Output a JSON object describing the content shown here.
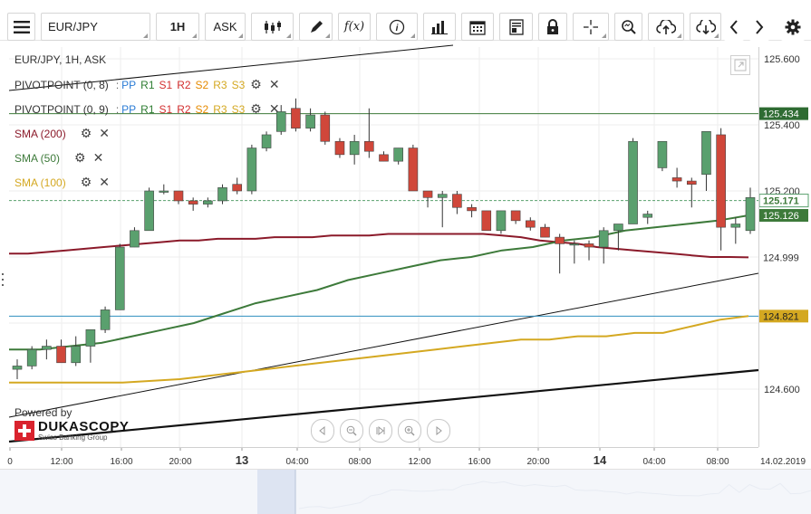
{
  "toolbar": {
    "symbol": "EUR/JPY",
    "timeframe": "1H",
    "price_side": "ASK",
    "function_label": "f(x)",
    "info_label": "i"
  },
  "header": {
    "instrument_label": "EUR/JPY, 1H, ASK"
  },
  "legend": {
    "pivot1": {
      "name": "PIVOTPOINT (0, 8)",
      "sep": ":",
      "pp": "PP",
      "r1": "R1",
      "s1": "S1",
      "r2": "R2",
      "s2": "S2",
      "r3": "R3",
      "s3": "S3"
    },
    "pivot2": {
      "name": "PIVOTPOINT (0, 9)",
      "sep": ":",
      "pp": "PP",
      "r1": "R1",
      "s1": "S1",
      "r2": "R2",
      "s2": "S2",
      "r3": "R3",
      "s3": "S3"
    },
    "sma200": "SMA (200)",
    "sma50": "SMA (50)",
    "sma100": "SMA (100)"
  },
  "colors": {
    "bull": "#5aa06e",
    "bear": "#d0473a",
    "sma200": "#8b1a2a",
    "sma50": "#3d7a3a",
    "sma100": "#d4a821",
    "pp": "#2a7bd5",
    "r1": "#2e7d32",
    "s1": "#d32f2f",
    "r2": "#d32f2f",
    "s2": "#e68a00",
    "r3": "#d4a821",
    "s3": "#d4a821",
    "pivot_line": "#3d7a3a",
    "cyan_line": "#2f8fbf"
  },
  "branding": {
    "powered_by": "Powered by",
    "brand": "DUKASCOPY",
    "tagline": "Swiss Banking Group"
  },
  "chart_data": {
    "type": "candlestick",
    "title": "EUR/JPY, 1H, ASK",
    "ylim": [
      124.52,
      125.66
    ],
    "y_ticks": [
      "125.600",
      "125.400",
      "125.200",
      "124.600"
    ],
    "x_ticks": [
      "0",
      "12:00",
      "16:00",
      "20:00",
      "13",
      "04:00",
      "08:00",
      "12:00",
      "16:00",
      "20:00",
      "14",
      "04:00",
      "08:00"
    ],
    "date_label": "14.02.2019",
    "price_tags": [
      {
        "label": "125.434",
        "value": 125.434,
        "style": "pivot"
      },
      {
        "label": "125.171",
        "value": 125.171,
        "style": "current"
      },
      {
        "label": "125.126",
        "value": 125.126,
        "style": "sma50"
      },
      {
        "label": "124.999",
        "value": 124.999,
        "style": "sma200"
      },
      {
        "label": "124.821",
        "value": 124.821,
        "style": "sma100"
      }
    ],
    "candles": [
      {
        "o": 124.66,
        "h": 124.69,
        "l": 124.63,
        "c": 124.67
      },
      {
        "o": 124.67,
        "h": 124.73,
        "l": 124.66,
        "c": 124.72
      },
      {
        "o": 124.72,
        "h": 124.75,
        "l": 124.69,
        "c": 124.73
      },
      {
        "o": 124.73,
        "h": 124.75,
        "l": 124.68,
        "c": 124.68
      },
      {
        "o": 124.68,
        "h": 124.76,
        "l": 124.67,
        "c": 124.73
      },
      {
        "o": 124.73,
        "h": 124.78,
        "l": 124.68,
        "c": 124.78
      },
      {
        "o": 124.78,
        "h": 124.85,
        "l": 124.77,
        "c": 124.84
      },
      {
        "o": 124.84,
        "h": 125.04,
        "l": 124.84,
        "c": 125.03
      },
      {
        "o": 125.03,
        "h": 125.09,
        "l": 125.03,
        "c": 125.08
      },
      {
        "o": 125.08,
        "h": 125.21,
        "l": 125.08,
        "c": 125.2
      },
      {
        "o": 125.2,
        "h": 125.22,
        "l": 125.19,
        "c": 125.2
      },
      {
        "o": 125.2,
        "h": 125.2,
        "l": 125.16,
        "c": 125.17
      },
      {
        "o": 125.17,
        "h": 125.18,
        "l": 125.14,
        "c": 125.16
      },
      {
        "o": 125.16,
        "h": 125.18,
        "l": 125.15,
        "c": 125.17
      },
      {
        "o": 125.17,
        "h": 125.22,
        "l": 125.16,
        "c": 125.21
      },
      {
        "o": 125.22,
        "h": 125.24,
        "l": 125.19,
        "c": 125.2
      },
      {
        "o": 125.2,
        "h": 125.34,
        "l": 125.19,
        "c": 125.33
      },
      {
        "o": 125.33,
        "h": 125.38,
        "l": 125.32,
        "c": 125.37
      },
      {
        "o": 125.38,
        "h": 125.46,
        "l": 125.37,
        "c": 125.44
      },
      {
        "o": 125.45,
        "h": 125.48,
        "l": 125.38,
        "c": 125.39
      },
      {
        "o": 125.39,
        "h": 125.45,
        "l": 125.38,
        "c": 125.43
      },
      {
        "o": 125.43,
        "h": 125.44,
        "l": 125.34,
        "c": 125.35
      },
      {
        "o": 125.35,
        "h": 125.36,
        "l": 125.3,
        "c": 125.31
      },
      {
        "o": 125.31,
        "h": 125.37,
        "l": 125.28,
        "c": 125.35
      },
      {
        "o": 125.35,
        "h": 125.45,
        "l": 125.3,
        "c": 125.32
      },
      {
        "o": 125.31,
        "h": 125.32,
        "l": 125.29,
        "c": 125.29
      },
      {
        "o": 125.29,
        "h": 125.33,
        "l": 125.28,
        "c": 125.33
      },
      {
        "o": 125.33,
        "h": 125.34,
        "l": 125.2,
        "c": 125.2
      },
      {
        "o": 125.2,
        "h": 125.2,
        "l": 125.15,
        "c": 125.18
      },
      {
        "o": 125.18,
        "h": 125.2,
        "l": 125.09,
        "c": 125.19
      },
      {
        "o": 125.19,
        "h": 125.2,
        "l": 125.13,
        "c": 125.15
      },
      {
        "o": 125.15,
        "h": 125.16,
        "l": 125.12,
        "c": 125.14
      },
      {
        "o": 125.14,
        "h": 125.14,
        "l": 125.08,
        "c": 125.08
      },
      {
        "o": 125.08,
        "h": 125.14,
        "l": 125.07,
        "c": 125.14
      },
      {
        "o": 125.14,
        "h": 125.14,
        "l": 125.1,
        "c": 125.11
      },
      {
        "o": 125.11,
        "h": 125.12,
        "l": 125.08,
        "c": 125.09
      },
      {
        "o": 125.09,
        "h": 125.1,
        "l": 125.06,
        "c": 125.06
      },
      {
        "o": 125.06,
        "h": 125.07,
        "l": 124.95,
        "c": 125.04
      },
      {
        "o": 125.04,
        "h": 125.05,
        "l": 124.98,
        "c": 125.04
      },
      {
        "o": 125.04,
        "h": 125.05,
        "l": 124.99,
        "c": 125.03
      },
      {
        "o": 125.03,
        "h": 125.09,
        "l": 124.98,
        "c": 125.08
      },
      {
        "o": 125.08,
        "h": 125.1,
        "l": 125.02,
        "c": 125.1
      },
      {
        "o": 125.1,
        "h": 125.36,
        "l": 125.1,
        "c": 125.35
      },
      {
        "o": 125.12,
        "h": 125.14,
        "l": 125.1,
        "c": 125.13
      },
      {
        "o": 125.27,
        "h": 125.35,
        "l": 125.26,
        "c": 125.35
      },
      {
        "o": 125.24,
        "h": 125.27,
        "l": 125.21,
        "c": 125.23
      },
      {
        "o": 125.23,
        "h": 125.24,
        "l": 125.15,
        "c": 125.22
      },
      {
        "o": 125.25,
        "h": 125.38,
        "l": 125.2,
        "c": 125.38
      },
      {
        "o": 125.37,
        "h": 125.39,
        "l": 125.02,
        "c": 125.09
      },
      {
        "o": 125.09,
        "h": 125.12,
        "l": 125.04,
        "c": 125.1
      },
      {
        "o": 125.08,
        "h": 125.21,
        "l": 125.07,
        "c": 125.18
      }
    ],
    "series": [
      {
        "name": "SMA (200)",
        "values": [
          125.01,
          125.01,
          125.015,
          125.02,
          125.025,
          125.03,
          125.035,
          125.04,
          125.045,
          125.05,
          125.05,
          125.055,
          125.055,
          125.055,
          125.06,
          125.06,
          125.06,
          125.065,
          125.065,
          125.065,
          125.07,
          125.07,
          125.07,
          125.07,
          125.07,
          125.07,
          125.065,
          125.06,
          125.05,
          125.045,
          125.04,
          125.03,
          125.025,
          125.02,
          125.015,
          125.01,
          125.005,
          125.0,
          125.0,
          124.999
        ]
      },
      {
        "name": "SMA (50)",
        "values": [
          124.72,
          124.72,
          124.73,
          124.74,
          124.76,
          124.78,
          124.8,
          124.83,
          124.86,
          124.88,
          124.9,
          124.93,
          124.95,
          124.97,
          124.99,
          125.0,
          125.02,
          125.03,
          125.05,
          125.06,
          125.08,
          125.09,
          125.1,
          125.11,
          125.126
        ]
      },
      {
        "name": "SMA (100)",
        "values": [
          124.62,
          124.62,
          124.62,
          124.62,
          124.62,
          124.625,
          124.63,
          124.64,
          124.65,
          124.66,
          124.67,
          124.68,
          124.69,
          124.7,
          124.71,
          124.72,
          124.73,
          124.74,
          124.75,
          124.75,
          124.76,
          124.76,
          124.77,
          124.77,
          124.79,
          124.81,
          124.821
        ]
      }
    ],
    "horizontal_lines": [
      {
        "value": 125.434,
        "style": "pivot"
      },
      {
        "value": 125.171,
        "style": "dashed"
      },
      {
        "value": 124.821,
        "style": "cyan"
      }
    ]
  }
}
